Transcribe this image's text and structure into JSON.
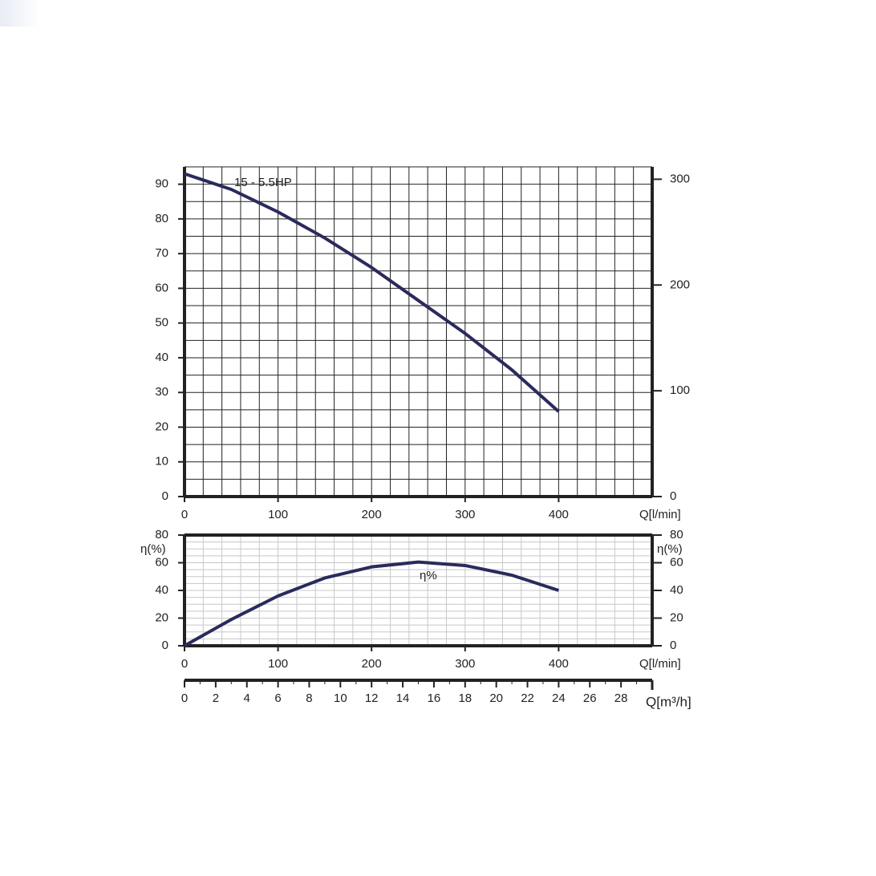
{
  "chart_data": [
    {
      "type": "line",
      "series": [
        {
          "name": "15 - 5.5HP",
          "color": "#2b2a5c",
          "x": [
            0,
            50,
            100,
            150,
            200,
            250,
            300,
            350,
            400
          ],
          "values": [
            93,
            88.5,
            82,
            74.5,
            66,
            56.5,
            47,
            36.5,
            24.5
          ]
        }
      ],
      "xlim": [
        0,
        500
      ],
      "xticks": [
        0,
        100,
        200,
        300,
        400
      ],
      "xlabel": "Q[l/min]",
      "ylim": [
        0,
        95
      ],
      "yticks": [
        0,
        10,
        20,
        30,
        40,
        50,
        60,
        70,
        80,
        90
      ],
      "y2lim": [
        0,
        311.7
      ],
      "y2ticks": [
        0,
        100,
        200,
        300
      ],
      "grid": true,
      "xminor": 20,
      "yminor": 5
    },
    {
      "type": "line",
      "series": [
        {
          "name": "η%",
          "color": "#2b2a5c",
          "x": [
            0,
            50,
            100,
            150,
            200,
            250,
            300,
            350,
            400
          ],
          "values": [
            0,
            19,
            36,
            49,
            57,
            60.5,
            58,
            51,
            40
          ]
        }
      ],
      "xlim": [
        0,
        500
      ],
      "xticks": [
        0,
        100,
        200,
        300,
        400
      ],
      "xlabel": "Q[l/min]",
      "ylim": [
        0,
        80
      ],
      "yticks": [
        0,
        20,
        40,
        60,
        80
      ],
      "ylabel": "η(%)",
      "y2lim": [
        0,
        80
      ],
      "y2ticks": [
        0,
        20,
        40,
        60,
        80
      ],
      "y2label": "η(%)",
      "grid": true,
      "xminor": 20,
      "yminor": 5,
      "x2lim": [
        0,
        30
      ],
      "x2ticks": [
        0,
        2,
        4,
        6,
        8,
        10,
        12,
        14,
        16,
        18,
        20,
        22,
        24,
        26,
        28
      ],
      "x2label": "Q[m³/h]",
      "x2minor": 1
    }
  ]
}
